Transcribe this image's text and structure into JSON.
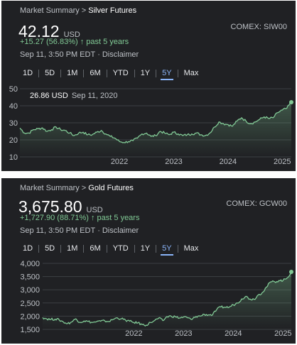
{
  "panels": [
    {
      "breadcrumb_prefix": "Market Summary >",
      "breadcrumb_name": "Silver Futures",
      "price": "42.12",
      "currency": "USD",
      "exchange": "COMEX: SIW00",
      "change": "+15.27 (56.83%) ↑ past 5 years",
      "timestamp": "Sep 11, 3:50 PM EDT",
      "disclaimer": "Disclaimer",
      "ranges": [
        "1D",
        "5D",
        "1M",
        "6M",
        "YTD",
        "1Y",
        "5Y",
        "Max"
      ],
      "selected_range": "5Y",
      "tooltip_value": "26.86 USD",
      "tooltip_date": "Sep 11, 2020"
    },
    {
      "breadcrumb_prefix": "Market Summary >",
      "breadcrumb_name": "Gold Futures",
      "price": "3,675.80",
      "currency": "USD",
      "exchange": "COMEX: GCW00",
      "change": "+1,727.90 (88.71%) ↑ past 5 years",
      "timestamp": "Sep 11, 3:50 PM EDT",
      "disclaimer": "Disclaimer",
      "ranges": [
        "1D",
        "5D",
        "1M",
        "6M",
        "YTD",
        "1Y",
        "5Y",
        "Max"
      ],
      "selected_range": "5Y"
    }
  ],
  "colors": {
    "background": "#202124",
    "line": "#81c995",
    "selected_range": "#8ab4f8",
    "positive_change": "#81c995"
  },
  "chart_data": [
    {
      "type": "line",
      "series": [
        {
          "x": [
            "2020-09",
            "2020-10",
            "2020-11",
            "2020-12",
            "2021-01",
            "2021-02",
            "2021-03",
            "2021-04",
            "2021-05",
            "2021-06",
            "2021-07",
            "2021-08",
            "2021-09",
            "2021-10",
            "2021-11",
            "2021-12",
            "2022-01",
            "2022-02",
            "2022-03",
            "2022-04",
            "2022-05",
            "2022-06",
            "2022-07",
            "2022-08",
            "2022-09",
            "2022-10",
            "2022-11",
            "2022-12",
            "2023-01",
            "2023-02",
            "2023-03",
            "2023-04",
            "2023-05",
            "2023-06",
            "2023-07",
            "2023-08",
            "2023-09",
            "2023-10",
            "2023-11",
            "2023-12",
            "2024-01",
            "2024-02",
            "2024-03",
            "2024-04",
            "2024-05",
            "2024-06",
            "2024-07",
            "2024-08",
            "2024-09",
            "2024-10",
            "2024-11",
            "2024-12",
            "2025-01",
            "2025-02",
            "2025-03",
            "2025-04",
            "2025-05",
            "2025-06",
            "2025-07",
            "2025-08",
            "2025-09"
          ],
          "values": [
            26.9,
            24.0,
            24.0,
            26.0,
            26.5,
            27.0,
            25.0,
            26.0,
            27.5,
            26.0,
            25.5,
            24.0,
            22.5,
            24.0,
            24.5,
            23.0,
            23.0,
            24.5,
            25.5,
            23.5,
            22.0,
            21.0,
            19.0,
            18.5,
            19.0,
            19.5,
            21.0,
            23.5,
            24.0,
            22.0,
            22.5,
            25.0,
            24.0,
            23.0,
            24.5,
            23.5,
            22.5,
            23.0,
            23.5,
            24.0,
            23.0,
            22.5,
            24.0,
            27.5,
            30.5,
            29.5,
            29.0,
            28.0,
            31.0,
            33.0,
            31.0,
            29.5,
            30.5,
            32.0,
            33.5,
            32.5,
            33.0,
            36.0,
            37.5,
            38.5,
            42.1
          ]
        }
      ],
      "ylim": [
        10,
        50
      ],
      "yticks": [
        10,
        20,
        30,
        40,
        50
      ],
      "xticks": [
        "2022",
        "2023",
        "2024",
        "2025"
      ],
      "grid": true
    },
    {
      "type": "line",
      "series": [
        {
          "x": [
            "2020-09",
            "2020-10",
            "2020-11",
            "2020-12",
            "2021-01",
            "2021-02",
            "2021-03",
            "2021-04",
            "2021-05",
            "2021-06",
            "2021-07",
            "2021-08",
            "2021-09",
            "2021-10",
            "2021-11",
            "2021-12",
            "2022-01",
            "2022-02",
            "2022-03",
            "2022-04",
            "2022-05",
            "2022-06",
            "2022-07",
            "2022-08",
            "2022-09",
            "2022-10",
            "2022-11",
            "2022-12",
            "2023-01",
            "2023-02",
            "2023-03",
            "2023-04",
            "2023-05",
            "2023-06",
            "2023-07",
            "2023-08",
            "2023-09",
            "2023-10",
            "2023-11",
            "2023-12",
            "2024-01",
            "2024-02",
            "2024-03",
            "2024-04",
            "2024-05",
            "2024-06",
            "2024-07",
            "2024-08",
            "2024-09",
            "2024-10",
            "2024-11",
            "2024-12",
            "2025-01",
            "2025-02",
            "2025-03",
            "2025-04",
            "2025-05",
            "2025-06",
            "2025-07",
            "2025-08",
            "2025-09"
          ],
          "values": [
            1950,
            1900,
            1880,
            1890,
            1860,
            1780,
            1720,
            1780,
            1900,
            1770,
            1820,
            1800,
            1760,
            1790,
            1810,
            1820,
            1800,
            1880,
            1940,
            1900,
            1850,
            1810,
            1760,
            1750,
            1680,
            1660,
            1760,
            1830,
            1930,
            1830,
            1980,
            2000,
            1980,
            1930,
            1970,
            1940,
            1870,
            1990,
            2000,
            2070,
            2050,
            2050,
            2250,
            2350,
            2340,
            2340,
            2430,
            2500,
            2650,
            2750,
            2650,
            2640,
            2800,
            2900,
            3100,
            3300,
            3300,
            3350,
            3350,
            3450,
            3676
          ]
        }
      ],
      "ylim": [
        1500,
        4000
      ],
      "yticks": [
        1500,
        2000,
        2500,
        3000,
        3500,
        4000
      ],
      "ytick_labels": [
        "1,500",
        "2,000",
        "2,500",
        "3,000",
        "3,500",
        "4,000"
      ],
      "xticks": [
        "2022",
        "2023",
        "2024",
        "2025"
      ],
      "grid": true
    }
  ]
}
